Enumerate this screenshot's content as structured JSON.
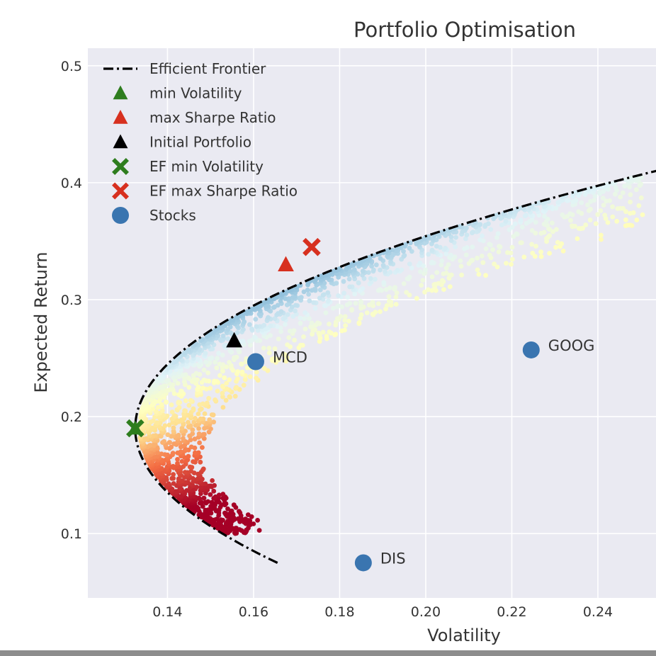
{
  "chart_data": {
    "type": "scatter",
    "title": "Portfolio Optimisation",
    "xlabel": "Volatility",
    "ylabel": "Expected Return",
    "xlim": [
      0.1215,
      0.2535
    ],
    "ylim": [
      0.045,
      0.515
    ],
    "xticks": [
      0.14,
      0.16,
      0.18,
      0.2,
      0.22,
      0.24
    ],
    "xtick_labels": [
      "0.14",
      "0.16",
      "0.18",
      "0.20",
      "0.22",
      "0.24"
    ],
    "yticks": [
      0.1,
      0.2,
      0.3,
      0.4,
      0.5
    ],
    "ytick_labels": [
      "0.1",
      "0.2",
      "0.3",
      "0.4",
      "0.5"
    ],
    "grid": true,
    "legend_position": "top-left",
    "legend": [
      {
        "label": "Efficient Frontier",
        "marker": "dashdot-line",
        "color": "#000000"
      },
      {
        "label": "min Volatility",
        "marker": "triangle",
        "color": "#2e7d1e"
      },
      {
        "label": "max Sharpe Ratio",
        "marker": "triangle",
        "color": "#d7301f"
      },
      {
        "label": "Initial Portfolio",
        "marker": "triangle",
        "color": "#000000"
      },
      {
        "label": "EF min Volatility",
        "marker": "cross",
        "color": "#2e7d1e"
      },
      {
        "label": "EF max Sharpe Ratio",
        "marker": "cross",
        "color": "#d7301f"
      },
      {
        "label": "Stocks",
        "marker": "circle",
        "color": "#3a75b0"
      }
    ],
    "efficient_frontier": {
      "min_volatility_point": {
        "volatility": 0.1325,
        "return": 0.19
      },
      "curvature": 2.5,
      "return_range": [
        0.075,
        0.455
      ]
    },
    "random_portfolios": {
      "count": 2500,
      "colormap": "RdYlBu",
      "color_by": "Sharpe Ratio"
    },
    "markers": {
      "min_volatility": {
        "volatility": 0.1325,
        "return": 0.19
      },
      "max_sharpe_ratio": {
        "volatility": 0.1675,
        "return": 0.33
      },
      "initial_portfolio": {
        "volatility": 0.1555,
        "return": 0.265
      },
      "ef_min_volatility": {
        "volatility": 0.1325,
        "return": 0.19
      },
      "ef_max_sharpe_ratio": {
        "volatility": 0.1735,
        "return": 0.345
      }
    },
    "stocks": [
      {
        "name": "MCD",
        "volatility": 0.1605,
        "return": 0.247
      },
      {
        "name": "GOOG",
        "volatility": 0.2245,
        "return": 0.257
      },
      {
        "name": "DIS",
        "volatility": 0.1855,
        "return": 0.075
      }
    ],
    "colors": {
      "plot_bg": "#eaeaf2",
      "grid": "#ffffff",
      "stock": "#3a75b0",
      "green": "#2e7d1e",
      "red": "#d7301f"
    }
  }
}
